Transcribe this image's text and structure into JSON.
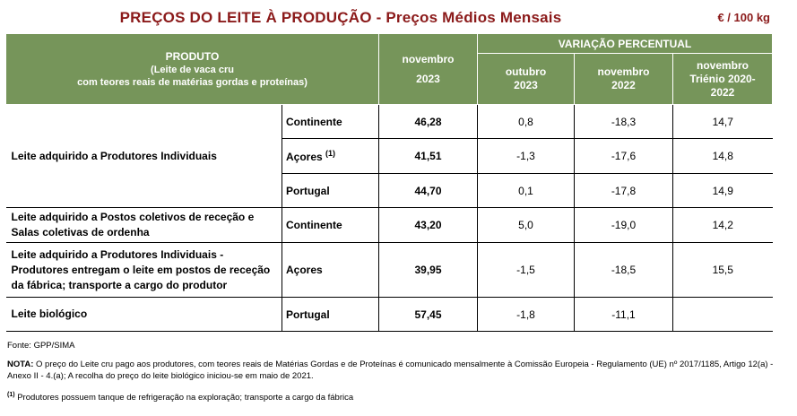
{
  "title": "PREÇOS DO LEITE À PRODUÇÃO - Preços Médios Mensais",
  "unit": "€ / 100 kg",
  "header": {
    "product_title": "PRODUTO",
    "product_sub1": "(Leite de vaca cru",
    "product_sub2": "com teores reais de matérias gordas e proteínas)",
    "month_line1": "novembro",
    "month_line2": "2023",
    "variation": "VARIAÇÃO PERCENTUAL",
    "col1_line1": "outubro",
    "col1_line2": "2023",
    "col2_line1": "novembro",
    "col2_line2": "2022",
    "col3_line1": "novembro",
    "col3_line2": "Triénio 2020-",
    "col3_line3": "2022"
  },
  "rows": [
    {
      "product": "Leite adquirido a Produtores Individuais",
      "region": "Continente",
      "sup": "",
      "price": "46,28",
      "v1": "0,8",
      "v2": "-18,3",
      "v3": "14,7"
    },
    {
      "product": "",
      "region": "Açores",
      "sup": "(1)",
      "price": "41,51",
      "v1": "-1,3",
      "v2": "-17,6",
      "v3": "14,8"
    },
    {
      "product": "",
      "region": "Portugal",
      "sup": "",
      "price": "44,70",
      "v1": "0,1",
      "v2": "-17,8",
      "v3": "14,9"
    },
    {
      "product": "Leite adquirido a Postos coletivos de receção e Salas coletivas de ordenha",
      "region": "Continente",
      "sup": "",
      "price": "43,20",
      "v1": "5,0",
      "v2": "-19,0",
      "v3": "14,2"
    },
    {
      "product": "Leite adquirido a Produtores Individuais - Produtores entregam o leite em postos de receção da fábrica; transporte a cargo do produtor",
      "region": "Açores",
      "sup": "",
      "price": "39,95",
      "v1": "-1,5",
      "v2": "-18,5",
      "v3": "15,5"
    },
    {
      "product": "Leite biológico",
      "region": "Portugal",
      "sup": "",
      "price": "57,45",
      "v1": "-1,8",
      "v2": "-11,1",
      "v3": ""
    }
  ],
  "footer": {
    "source": "Fonte: GPP/SIMA",
    "note_label": "NOTA:",
    "note_text": "O preço do Leite cru pago aos produtores, com teores reais de Matérias Gordas e de Proteínas é comunicado mensalmente à Comissão Europeia - Regulamento (UE) nº 2017/1185, Artigo 12(a) - Anexo II - 4.(a); A recolha do preço do leite biológico iniciou-se em maio de 2021.",
    "fn_mark": "(1)",
    "fn_text": "Produtores possuem tanque de refrigeração na exploração; transporte a cargo da fábrica"
  }
}
